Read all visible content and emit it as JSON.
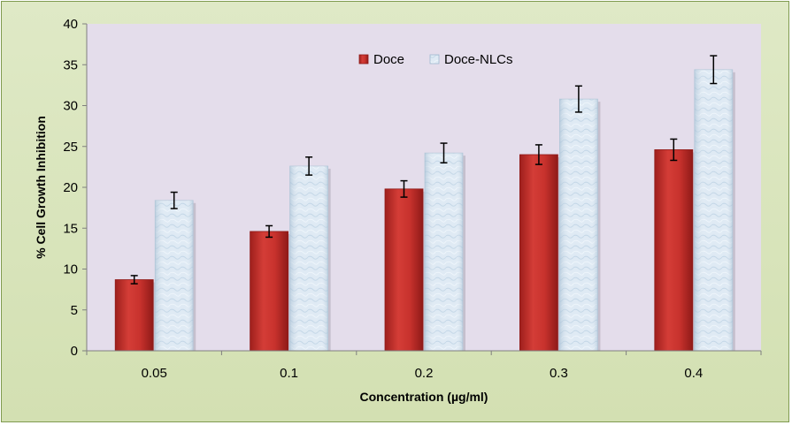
{
  "chart_data": {
    "type": "bar",
    "title": "",
    "xlabel": "Concentration (µg/ml)",
    "ylabel": "% Cell Growth Inhibition",
    "categories": [
      "0.05",
      "0.1",
      "0.2",
      "0.3",
      "0.4"
    ],
    "ylim": [
      0,
      40
    ],
    "yticks": [
      "0",
      "5",
      "10",
      "15",
      "20",
      "25",
      "30",
      "35",
      "40"
    ],
    "series": [
      {
        "name": "Doce",
        "color": "#c0302c",
        "values": [
          8.7,
          14.6,
          19.8,
          24.0,
          24.6
        ],
        "errors": [
          0.5,
          0.7,
          1.0,
          1.2,
          1.3
        ]
      },
      {
        "name": "Doce-NLCs",
        "color": "#dbe8f2",
        "values": [
          18.4,
          22.6,
          24.2,
          30.8,
          34.4
        ],
        "errors": [
          1.0,
          1.1,
          1.2,
          1.6,
          1.7
        ]
      }
    ],
    "legend_position": "top-center",
    "grid": false,
    "plot_background": "#e4ddeb",
    "chart_background": "#d9e4bf"
  }
}
